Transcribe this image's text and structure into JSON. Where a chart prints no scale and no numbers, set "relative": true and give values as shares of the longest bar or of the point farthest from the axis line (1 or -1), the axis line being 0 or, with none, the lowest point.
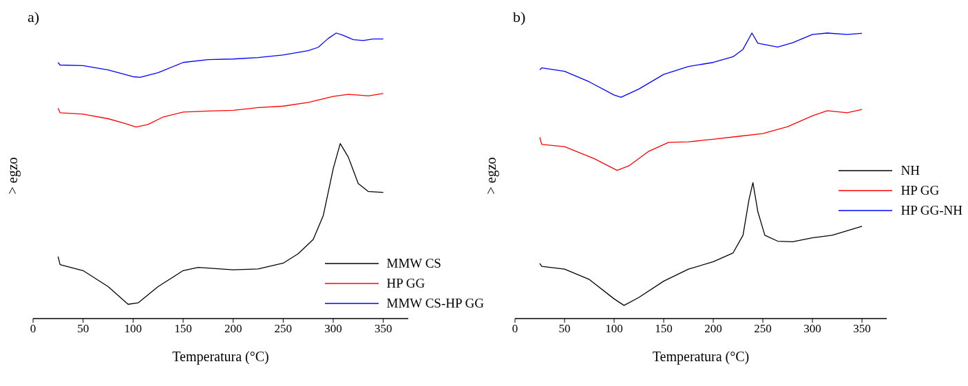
{
  "chart_data": [
    {
      "type": "line",
      "title": "a)",
      "xlabel": "Temperatura (°C)",
      "ylabel": "> egzo",
      "relative": true,
      "xlim": [
        0,
        375
      ],
      "xticks": [
        0,
        50,
        100,
        150,
        200,
        250,
        300,
        350
      ],
      "legend": "bottom right",
      "marker": "none",
      "line_style": "solid",
      "tick_labels": "x",
      "series": [
        {
          "name": "MMW CS",
          "color": "#000000",
          "x": [
            25,
            27,
            50,
            75,
            95,
            105,
            125,
            150,
            165,
            200,
            225,
            250,
            265,
            280,
            290,
            300,
            307,
            315,
            325,
            335,
            350
          ],
          "values": [
            0.217,
            0.189,
            0.168,
            0.112,
            0.05,
            0.055,
            0.112,
            0.168,
            0.179,
            0.171,
            0.174,
            0.194,
            0.227,
            0.277,
            0.36,
            0.525,
            0.613,
            0.566,
            0.473,
            0.445,
            0.442
          ]
        },
        {
          "name": "HP GG",
          "color": "#ff0000",
          "x": [
            25,
            27,
            50,
            75,
            90,
            103,
            115,
            130,
            150,
            175,
            200,
            225,
            250,
            275,
            300,
            315,
            325,
            335,
            350
          ],
          "values": [
            0.737,
            0.721,
            0.716,
            0.7,
            0.685,
            0.671,
            0.68,
            0.706,
            0.723,
            0.727,
            0.729,
            0.739,
            0.744,
            0.757,
            0.778,
            0.785,
            0.783,
            0.78,
            0.788
          ]
        },
        {
          "name": "MMW CS-HP GG",
          "color": "#0000ff",
          "x": [
            25,
            27,
            50,
            75,
            100,
            107,
            125,
            150,
            175,
            200,
            225,
            250,
            275,
            285,
            295,
            303,
            310,
            320,
            330,
            340,
            350
          ],
          "values": [
            0.897,
            0.888,
            0.886,
            0.871,
            0.847,
            0.845,
            0.861,
            0.897,
            0.907,
            0.909,
            0.914,
            0.923,
            0.938,
            0.95,
            0.981,
            1.0,
            0.992,
            0.977,
            0.974,
            0.979,
            0.979
          ]
        }
      ]
    },
    {
      "type": "line",
      "title": "b)",
      "xlabel": "Temperatura (°C)",
      "ylabel": "> egzo",
      "relative": true,
      "xlim": [
        0,
        375
      ],
      "xticks": [
        0,
        50,
        100,
        150,
        200,
        250,
        300,
        350
      ],
      "legend": "right",
      "marker": "none",
      "line_style": "solid",
      "tick_labels": "x",
      "series": [
        {
          "name": "NH",
          "color": "#000000",
          "x": [
            25,
            27,
            50,
            75,
            100,
            110,
            125,
            150,
            175,
            200,
            220,
            230,
            236,
            240,
            245,
            252,
            265,
            280,
            300,
            320,
            350
          ],
          "values": [
            0.193,
            0.183,
            0.173,
            0.137,
            0.069,
            0.046,
            0.074,
            0.131,
            0.173,
            0.199,
            0.23,
            0.292,
            0.416,
            0.476,
            0.374,
            0.292,
            0.271,
            0.269,
            0.283,
            0.292,
            0.323
          ]
        },
        {
          "name": "HP GG",
          "color": "#ff0000",
          "x": [
            25,
            27,
            50,
            65,
            80,
            103,
            115,
            135,
            155,
            175,
            200,
            225,
            250,
            275,
            300,
            315,
            335,
            350
          ],
          "values": [
            0.635,
            0.61,
            0.602,
            0.581,
            0.56,
            0.519,
            0.535,
            0.586,
            0.617,
            0.619,
            0.628,
            0.638,
            0.648,
            0.672,
            0.71,
            0.728,
            0.721,
            0.732
          ]
        },
        {
          "name": "HP GG-NH",
          "color": "#0000ff",
          "x": [
            25,
            27,
            50,
            75,
            100,
            107,
            125,
            150,
            175,
            200,
            220,
            230,
            239,
            245,
            265,
            280,
            300,
            315,
            335,
            350
          ],
          "values": [
            0.871,
            0.878,
            0.866,
            0.829,
            0.783,
            0.775,
            0.804,
            0.855,
            0.883,
            0.897,
            0.917,
            0.943,
            1.0,
            0.964,
            0.951,
            0.966,
            0.995,
            1.0,
            0.995,
            0.999
          ]
        }
      ]
    }
  ]
}
